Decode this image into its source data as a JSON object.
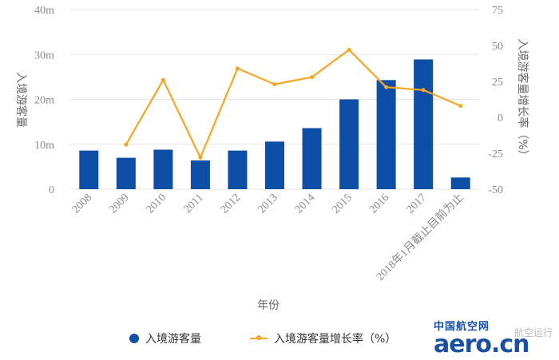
{
  "chart_data": {
    "type": "bar",
    "categories": [
      "2008",
      "2009",
      "2010",
      "2011",
      "2012",
      "2013",
      "2014",
      "2015",
      "2016",
      "2017",
      "2018年1月截止目前为止"
    ],
    "series": [
      {
        "name": "入境游客量",
        "type": "bar",
        "axis": "left",
        "color": "#0d4ea6",
        "values": [
          8.6,
          7.0,
          8.8,
          6.4,
          8.6,
          10.6,
          13.6,
          20.0,
          24.3,
          28.9,
          2.6
        ]
      },
      {
        "name": "入境游客量增长率（%）",
        "type": "line",
        "axis": "right",
        "color": "#f6a623",
        "values": [
          null,
          -19,
          26,
          -28,
          34,
          23,
          28,
          47,
          21,
          19,
          8
        ]
      }
    ],
    "xlabel": "年份",
    "ylabel": "入境游客量",
    "y2label": "入境游客量增长率（%）",
    "ylim": [
      0,
      40
    ],
    "y2lim": [
      -50,
      75
    ],
    "yticks": [
      "0",
      "10m",
      "20m",
      "30m",
      "40m"
    ],
    "y2ticks": [
      "-50",
      "-25",
      "0",
      "25",
      "50",
      "75"
    ],
    "grid": true,
    "legend": "bottom"
  },
  "logo": {
    "top": "中国航空网",
    "main": "aero.cn",
    "watermark": "航空运行"
  }
}
